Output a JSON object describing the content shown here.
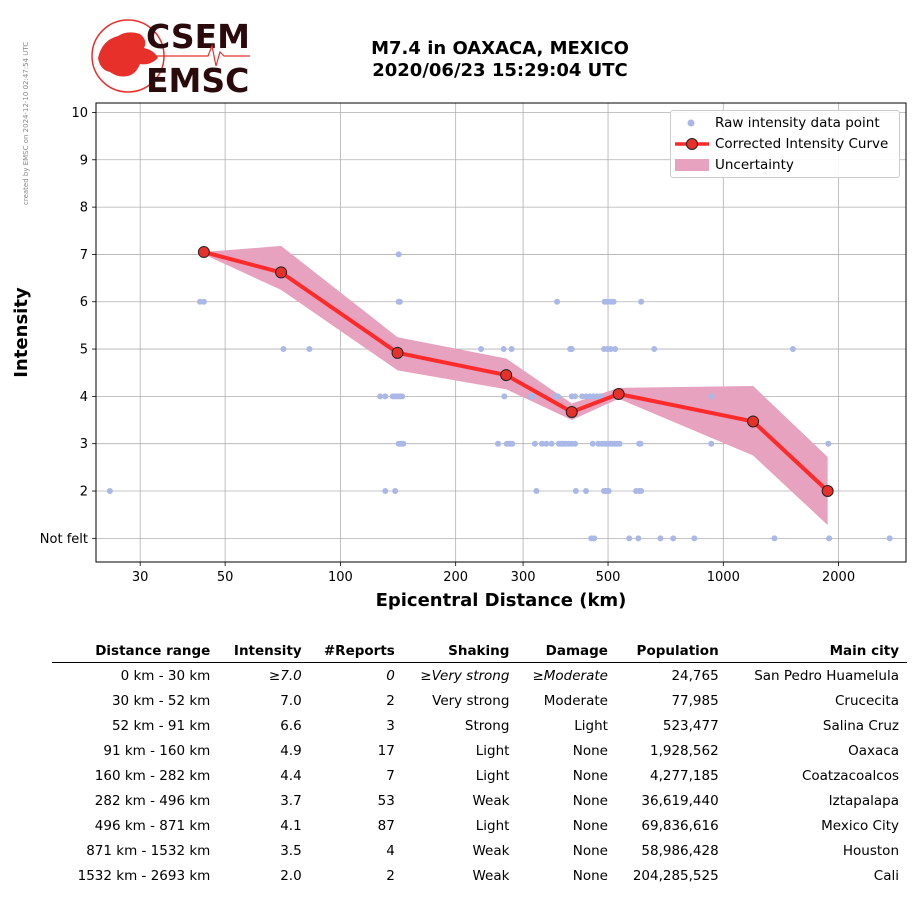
{
  "stamp": "created by EMSC on 2024-12-10 02:47:54 UTC",
  "logo": {
    "line1": "CSEM",
    "line2": "EMSC"
  },
  "title": {
    "line1": "M7.4 in OAXACA, MEXICO",
    "line2": "2020/06/23 15:29:04 UTC"
  },
  "colors": {
    "raw": "#aab8e8",
    "curve": "#ff2a2a",
    "marker_fill": "#e8302a",
    "band": "#e6a2be",
    "logo_red": "#e8302a"
  },
  "chart_data": {
    "type": "scatter",
    "xlabel": "Epicentral Distance (km)",
    "ylabel": "Intensity",
    "xscale": "log",
    "xlim": [
      23,
      3000
    ],
    "ylim": [
      0.5,
      10.2
    ],
    "xticks": [
      30,
      50,
      100,
      200,
      300,
      500,
      1000,
      2000
    ],
    "yticks": [
      {
        "v": 1,
        "label": "Not felt"
      },
      {
        "v": 2,
        "label": "2"
      },
      {
        "v": 3,
        "label": "3"
      },
      {
        "v": 4,
        "label": "4"
      },
      {
        "v": 5,
        "label": "5"
      },
      {
        "v": 6,
        "label": "6"
      },
      {
        "v": 7,
        "label": "7"
      },
      {
        "v": 8,
        "label": "8"
      },
      {
        "v": 9,
        "label": "9"
      },
      {
        "v": 10,
        "label": "10"
      }
    ],
    "grid": true,
    "legend_position": "top-right",
    "legend": [
      "Raw intensity data point",
      "Corrected Intensity Curve",
      "Uncertainty"
    ],
    "curve": [
      [
        44,
        7.05
      ],
      [
        70,
        6.62
      ],
      [
        141,
        4.92
      ],
      [
        271,
        4.45
      ],
      [
        402,
        3.67
      ],
      [
        533,
        4.05
      ],
      [
        1196,
        3.47
      ],
      [
        1873,
        2.0
      ]
    ],
    "uncertainty_upper": [
      [
        44,
        7.05
      ],
      [
        70,
        7.18
      ],
      [
        141,
        5.25
      ],
      [
        271,
        4.8
      ],
      [
        402,
        3.85
      ],
      [
        533,
        4.18
      ],
      [
        1196,
        4.22
      ],
      [
        1873,
        2.72
      ]
    ],
    "uncertainty_lower": [
      [
        44,
        7.0
      ],
      [
        70,
        6.25
      ],
      [
        141,
        4.55
      ],
      [
        271,
        4.15
      ],
      [
        402,
        3.5
      ],
      [
        533,
        3.95
      ],
      [
        1196,
        2.75
      ],
      [
        1873,
        1.28
      ]
    ],
    "raw_points": [
      [
        25,
        2
      ],
      [
        43,
        6
      ],
      [
        44,
        6
      ],
      [
        71,
        5
      ],
      [
        83,
        5
      ],
      [
        127,
        4
      ],
      [
        131,
        4
      ],
      [
        137,
        4
      ],
      [
        139,
        4
      ],
      [
        141,
        4
      ],
      [
        143,
        4
      ],
      [
        145,
        4
      ],
      [
        131,
        2
      ],
      [
        139,
        2
      ],
      [
        142,
        3
      ],
      [
        144,
        3
      ],
      [
        146,
        3
      ],
      [
        142,
        6
      ],
      [
        143,
        6
      ],
      [
        142,
        7
      ],
      [
        233,
        5
      ],
      [
        267,
        5
      ],
      [
        280,
        5
      ],
      [
        268,
        4
      ],
      [
        258,
        3
      ],
      [
        272,
        3
      ],
      [
        277,
        3
      ],
      [
        281,
        3
      ],
      [
        314,
        4
      ],
      [
        318,
        4
      ],
      [
        325,
        2
      ],
      [
        322,
        3
      ],
      [
        336,
        3
      ],
      [
        345,
        3
      ],
      [
        356,
        3
      ],
      [
        365,
        4
      ],
      [
        370,
        4
      ],
      [
        372,
        3
      ],
      [
        378,
        3
      ],
      [
        382,
        3
      ],
      [
        388,
        3
      ],
      [
        395,
        3
      ],
      [
        402,
        3
      ],
      [
        410,
        3
      ],
      [
        368,
        6
      ],
      [
        398,
        5
      ],
      [
        402,
        5
      ],
      [
        402,
        4
      ],
      [
        410,
        4
      ],
      [
        412,
        2
      ],
      [
        428,
        4
      ],
      [
        438,
        4
      ],
      [
        448,
        4
      ],
      [
        458,
        4
      ],
      [
        468,
        4
      ],
      [
        478,
        4
      ],
      [
        438,
        2
      ],
      [
        456,
        3
      ],
      [
        472,
        3
      ],
      [
        482,
        3
      ],
      [
        490,
        3
      ],
      [
        498,
        3
      ],
      [
        506,
        3
      ],
      [
        513,
        3
      ],
      [
        520,
        3
      ],
      [
        528,
        3
      ],
      [
        536,
        3
      ],
      [
        488,
        2
      ],
      [
        492,
        2
      ],
      [
        498,
        2
      ],
      [
        502,
        2
      ],
      [
        488,
        5
      ],
      [
        498,
        5
      ],
      [
        508,
        5
      ],
      [
        522,
        5
      ],
      [
        490,
        6
      ],
      [
        498,
        6
      ],
      [
        508,
        6
      ],
      [
        517,
        6
      ],
      [
        452,
        1
      ],
      [
        460,
        1
      ],
      [
        568,
        1
      ],
      [
        600,
        1
      ],
      [
        685,
        1
      ],
      [
        740,
        1
      ],
      [
        840,
        1
      ],
      [
        592,
        2
      ],
      [
        603,
        2
      ],
      [
        610,
        2
      ],
      [
        603,
        3
      ],
      [
        608,
        3
      ],
      [
        610,
        6
      ],
      [
        660,
        5
      ],
      [
        930,
        3
      ],
      [
        930,
        4
      ],
      [
        1520,
        5
      ],
      [
        1360,
        1
      ],
      [
        1880,
        3
      ],
      [
        1890,
        1
      ],
      [
        2720,
        1
      ]
    ]
  },
  "table": {
    "headers": [
      "Distance range",
      "Intensity",
      "#Reports",
      "Shaking",
      "Damage",
      "Population",
      "Main city"
    ],
    "rows": [
      [
        "0 km -   30 km",
        "≥7.0",
        "0",
        "≥Very strong",
        "≥Moderate",
        "24,765",
        "San Pedro Huamelula"
      ],
      [
        "30 km -   52 km",
        "7.0",
        "2",
        "Very strong",
        "Moderate",
        "77,985",
        "Crucecita"
      ],
      [
        "52 km -   91 km",
        "6.6",
        "3",
        "Strong",
        "Light",
        "523,477",
        "Salina Cruz"
      ],
      [
        "91 km -  160 km",
        "4.9",
        "17",
        "Light",
        "None",
        "1,928,562",
        "Oaxaca"
      ],
      [
        "160 km -  282 km",
        "4.4",
        "7",
        "Light",
        "None",
        "4,277,185",
        "Coatzacoalcos"
      ],
      [
        "282 km -  496 km",
        "3.7",
        "53",
        "Weak",
        "None",
        "36,619,440",
        "Iztapalapa"
      ],
      [
        "496 km -  871 km",
        "4.1",
        "87",
        "Light",
        "None",
        "69,836,616",
        "Mexico City"
      ],
      [
        "871 km - 1532 km",
        "3.5",
        "4",
        "Weak",
        "None",
        "58,986,428",
        "Houston"
      ],
      [
        "1532 km - 2693 km",
        "2.0",
        "2",
        "Weak",
        "None",
        "204,285,525",
        "Cali"
      ]
    ]
  }
}
